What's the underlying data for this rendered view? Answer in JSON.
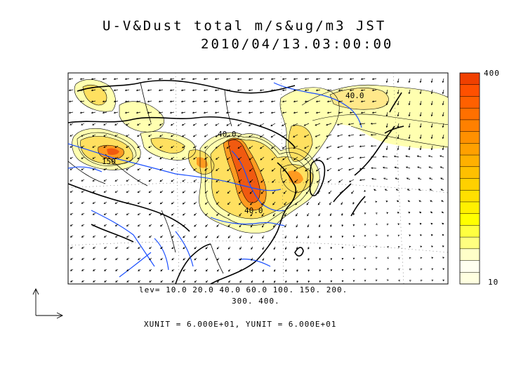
{
  "title": {
    "line1": "U-V&Dust total m/s&ug/m3 JST",
    "line2": "2010/04/13.03:00:00"
  },
  "contour_levels": {
    "line1": "lev= 10.0 20.0 40.0 60.0 100. 150. 200.",
    "line2": "300. 400."
  },
  "units_text": "XUNIT = 6.000E+01, YUNIT = 6.000E+01",
  "colorbar": {
    "max_label": "400",
    "min_label": "10",
    "colors": [
      "#ffffe0",
      "#fffff0",
      "#ffffc8",
      "#ffff80",
      "#ffff40",
      "#ffff00",
      "#fff000",
      "#ffe000",
      "#ffd000",
      "#ffc000",
      "#ffb000",
      "#ffa000",
      "#ff9000",
      "#ff8000",
      "#ff7000",
      "#ff6000",
      "#ff5000",
      "#f04000"
    ]
  },
  "contour_labels": [
    "150",
    "40.0",
    "40.0",
    "40.0"
  ],
  "colors": {
    "coastline": "#000000",
    "rivers": "#1a4fff",
    "borders": "#000000"
  }
}
